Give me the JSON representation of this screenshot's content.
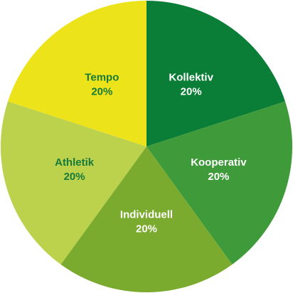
{
  "chart_data": {
    "type": "pie",
    "title": "",
    "start_angle_deg": 0,
    "direction": "clockwise",
    "slices": [
      {
        "label": "Kollektiv",
        "value": 20,
        "value_label": "20%",
        "color": "#0a7e37",
        "text_color": "#ffffff"
      },
      {
        "label": "Kooperativ",
        "value": 20,
        "value_label": "20%",
        "color": "#3f9a3a",
        "text_color": "#ffffff"
      },
      {
        "label": "Individuell",
        "value": 20,
        "value_label": "20%",
        "color": "#7aab2e",
        "text_color": "#ffffff"
      },
      {
        "label": "Athletik",
        "value": 20,
        "value_label": "20%",
        "color": "#bcd14c",
        "text_color": "#157a3a"
      },
      {
        "label": "Tempo",
        "value": 20,
        "value_label": "20%",
        "color": "#ede31a",
        "text_color": "#157a3a"
      }
    ]
  }
}
